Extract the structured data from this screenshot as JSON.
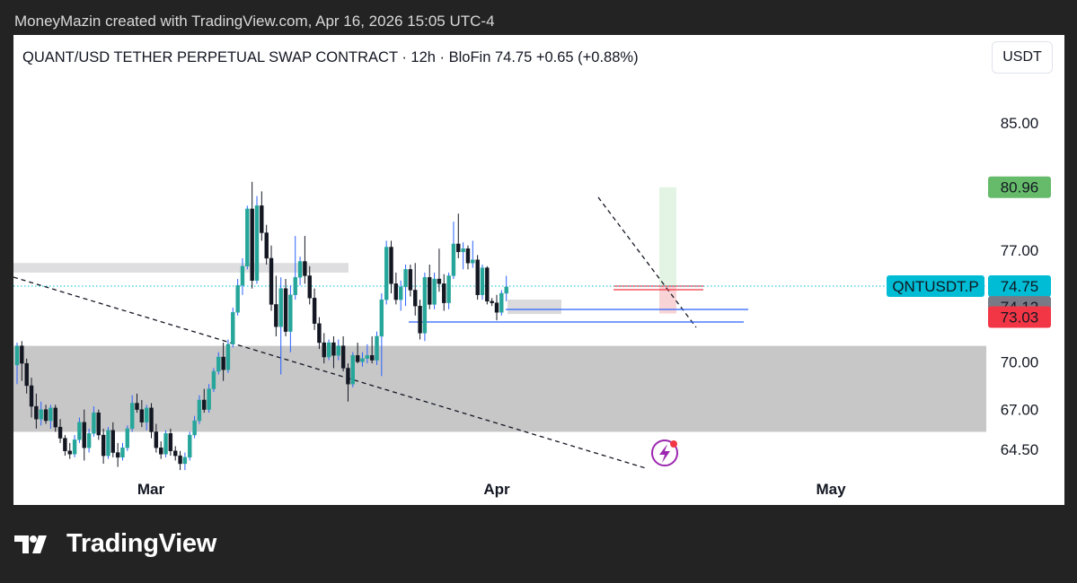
{
  "attribution": "MoneyMazin created with TradingView.com, Apr 16, 2026 15:05 UTC-4",
  "header": {
    "title": "QUANT/USD TETHER PERPETUAL SWAP CONTRACT · 12h · BloFin  74.75  +0.65 (+0.88%)",
    "currency": "USDT"
  },
  "logo": {
    "text": "TradingView",
    "icon": "tradingview-logo-icon"
  },
  "colors": {
    "up": "#26a69a",
    "down": "#131722",
    "wick_up": "#2962ff",
    "label_target": "#66bb6a",
    "label_symbol": "#00bcd4",
    "label_entry": "#787b86",
    "label_stop": "#f23645"
  },
  "chart_data": {
    "type": "candlestick",
    "symbol": "QNTUSDT.P",
    "timeframe": "12h",
    "exchange": "BloFin",
    "last_price": 74.75,
    "change": 0.65,
    "change_pct": 0.88,
    "y_ticks": [
      85.0,
      77.0,
      70.0,
      67.0,
      64.5
    ],
    "y_tick_labels": [
      "85.00",
      "77.00",
      "70.00",
      "67.00",
      "64.50"
    ],
    "x_tick_labels": [
      "Mar",
      "Apr",
      "May"
    ],
    "price_labels": [
      {
        "name": "target",
        "value": 80.96,
        "text": "80.96"
      },
      {
        "name": "symbol",
        "value": 74.75,
        "text": "QNTUSDT.P"
      },
      {
        "name": "last",
        "value": 74.75,
        "text": "74.75"
      },
      {
        "name": "entry",
        "value": 74.12,
        "text": "74.12"
      },
      {
        "name": "stop",
        "value": 73.03,
        "text": "73.03"
      }
    ],
    "zones": [
      {
        "name": "demand-zone",
        "from": 65.6,
        "to": 71.0
      },
      {
        "name": "supply-zone",
        "from": 75.6,
        "to": 76.2
      }
    ],
    "ohlc": [
      [
        69.8,
        71.2,
        68.6,
        71.0
      ],
      [
        71.0,
        71.3,
        68.8,
        69.9
      ],
      [
        69.9,
        70.2,
        68.0,
        68.5
      ],
      [
        68.5,
        69.0,
        66.5,
        67.2
      ],
      [
        67.2,
        68.0,
        65.8,
        66.4
      ],
      [
        66.4,
        67.5,
        66.0,
        67.0
      ],
      [
        67.0,
        67.3,
        66.1,
        66.3
      ],
      [
        66.3,
        67.3,
        65.8,
        67.1
      ],
      [
        67.1,
        67.3,
        65.6,
        65.9
      ],
      [
        65.9,
        66.4,
        64.9,
        65.2
      ],
      [
        65.2,
        65.4,
        64.1,
        64.4
      ],
      [
        64.4,
        64.9,
        63.9,
        64.2
      ],
      [
        64.2,
        65.4,
        64.0,
        65.1
      ],
      [
        65.1,
        66.5,
        64.9,
        66.2
      ],
      [
        66.2,
        67.0,
        63.8,
        64.6
      ],
      [
        64.6,
        65.8,
        64.3,
        65.5
      ],
      [
        65.5,
        67.2,
        65.3,
        66.8
      ],
      [
        66.8,
        67.0,
        65.1,
        65.4
      ],
      [
        65.4,
        65.8,
        63.6,
        64.1
      ],
      [
        64.1,
        65.9,
        63.9,
        65.7
      ],
      [
        65.7,
        66.2,
        64.0,
        64.3
      ],
      [
        64.3,
        64.9,
        63.4,
        64.0
      ],
      [
        64.0,
        64.9,
        63.8,
        64.6
      ],
      [
        64.6,
        66.0,
        64.4,
        65.8
      ],
      [
        65.8,
        67.9,
        65.6,
        67.4
      ],
      [
        67.4,
        68.0,
        66.8,
        67.0
      ],
      [
        67.0,
        67.6,
        65.9,
        66.2
      ],
      [
        66.2,
        67.3,
        65.7,
        67.1
      ],
      [
        67.1,
        67.4,
        65.2,
        65.6
      ],
      [
        65.6,
        66.1,
        64.3,
        64.6
      ],
      [
        64.6,
        65.0,
        63.9,
        64.2
      ],
      [
        64.2,
        65.7,
        64.0,
        65.5
      ],
      [
        65.5,
        65.8,
        64.1,
        64.4
      ],
      [
        64.4,
        64.7,
        63.8,
        64.1
      ],
      [
        64.1,
        64.4,
        63.2,
        63.6
      ],
      [
        63.6,
        64.3,
        63.2,
        64.0
      ],
      [
        64.0,
        65.6,
        63.8,
        65.4
      ],
      [
        65.4,
        66.6,
        65.2,
        66.3
      ],
      [
        66.3,
        67.9,
        66.1,
        67.6
      ],
      [
        67.6,
        68.3,
        66.8,
        67.0
      ],
      [
        67.0,
        68.6,
        66.8,
        68.3
      ],
      [
        68.3,
        69.6,
        68.1,
        69.4
      ],
      [
        69.4,
        70.6,
        69.2,
        70.3
      ],
      [
        70.3,
        71.2,
        68.8,
        69.5
      ],
      [
        69.5,
        71.4,
        69.3,
        71.1
      ],
      [
        71.1,
        73.4,
        70.9,
        73.1
      ],
      [
        73.1,
        75.2,
        72.9,
        74.8
      ],
      [
        74.8,
        76.5,
        74.2,
        76.0
      ],
      [
        76.0,
        79.8,
        75.8,
        79.6
      ],
      [
        79.6,
        81.3,
        74.6,
        75.1
      ],
      [
        75.1,
        80.4,
        74.9,
        79.8
      ],
      [
        79.8,
        80.7,
        77.6,
        78.1
      ],
      [
        78.1,
        78.6,
        76.1,
        76.5
      ],
      [
        76.5,
        77.3,
        73.2,
        73.6
      ],
      [
        73.6,
        75.4,
        71.6,
        72.2
      ],
      [
        72.2,
        75.3,
        69.2,
        74.6
      ],
      [
        74.6,
        75.2,
        71.6,
        71.9
      ],
      [
        71.9,
        74.8,
        70.6,
        74.2
      ],
      [
        74.2,
        77.9,
        73.9,
        75.3
      ],
      [
        75.3,
        76.6,
        74.8,
        76.3
      ],
      [
        76.3,
        77.9,
        74.9,
        75.4
      ],
      [
        75.4,
        76.0,
        73.6,
        74.0
      ],
      [
        74.0,
        74.6,
        72.0,
        72.4
      ],
      [
        72.4,
        72.8,
        70.8,
        71.2
      ],
      [
        71.2,
        71.8,
        69.9,
        70.3
      ],
      [
        70.3,
        71.4,
        70.1,
        71.2
      ],
      [
        71.2,
        71.6,
        69.6,
        70.4
      ],
      [
        70.4,
        71.4,
        70.1,
        71.0
      ],
      [
        71.0,
        71.6,
        69.4,
        69.6
      ],
      [
        69.6,
        69.9,
        67.5,
        68.6
      ],
      [
        68.6,
        70.6,
        68.4,
        70.4
      ],
      [
        70.4,
        71.2,
        69.9,
        70.0
      ],
      [
        70.0,
        70.6,
        69.7,
        70.2
      ],
      [
        70.2,
        71.1,
        69.9,
        70.4
      ],
      [
        70.4,
        71.6,
        69.9,
        70.1
      ],
      [
        70.1,
        71.9,
        69.8,
        71.6
      ],
      [
        71.6,
        74.3,
        69.1,
        73.9
      ],
      [
        73.9,
        77.6,
        73.6,
        77.2
      ],
      [
        77.2,
        77.6,
        74.3,
        74.9
      ],
      [
        74.9,
        75.6,
        73.6,
        73.9
      ],
      [
        73.9,
        75.1,
        73.2,
        74.7
      ],
      [
        74.7,
        76.1,
        73.5,
        75.8
      ],
      [
        75.8,
        76.1,
        74.1,
        74.5
      ],
      [
        74.5,
        76.2,
        72.9,
        73.5
      ],
      [
        73.5,
        73.9,
        71.4,
        71.8
      ],
      [
        71.8,
        75.6,
        71.3,
        75.3
      ],
      [
        75.3,
        76.1,
        73.3,
        73.6
      ],
      [
        73.6,
        75.6,
        73.3,
        75.2
      ],
      [
        75.2,
        77.1,
        74.4,
        74.9
      ],
      [
        74.9,
        75.5,
        73.2,
        73.7
      ],
      [
        73.7,
        75.6,
        73.3,
        75.4
      ],
      [
        75.4,
        78.8,
        75.2,
        77.4
      ],
      [
        77.4,
        79.3,
        76.5,
        76.9
      ],
      [
        76.9,
        77.5,
        75.8,
        77.1
      ],
      [
        77.1,
        77.3,
        75.8,
        76.2
      ],
      [
        76.2,
        77.6,
        75.9,
        76.4
      ],
      [
        76.4,
        76.7,
        73.9,
        74.2
      ],
      [
        74.2,
        76.1,
        73.9,
        75.9
      ],
      [
        75.9,
        76.0,
        73.6,
        73.8
      ],
      [
        73.8,
        74.0,
        73.5,
        73.7
      ],
      [
        73.7,
        74.2,
        72.6,
        73.1
      ],
      [
        73.1,
        74.5,
        72.9,
        74.3
      ],
      [
        74.3,
        75.4,
        73.8,
        74.7
      ]
    ],
    "notes": {
      "ohlc_order": "open, high, low, close per 12h candle",
      "x_range": "Feb 21 to May 9"
    }
  }
}
